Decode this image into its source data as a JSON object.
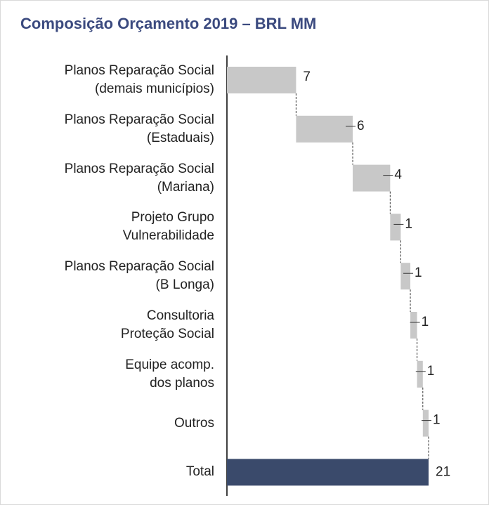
{
  "chart_data": {
    "type": "waterfall",
    "title": "Composição Orçamento 2019 – BRL MM",
    "categories": [
      "Planos Reparação Social\n(demais municípios)",
      "Planos Reparação Social\n(Estaduais)",
      "Planos Reparação Social\n(Mariana)",
      "Projeto Grupo\nVulnerabilidade",
      "Planos Reparação Social\n(B Longa)",
      "Consultoria\nProteção Social",
      "Equipe acomp.\ndos planos",
      "Outros",
      "Total"
    ],
    "values": [
      7.2,
      5.9,
      3.9,
      1.1,
      1.0,
      0.7,
      0.6,
      0.6,
      21
    ],
    "value_labels": [
      "7",
      "6",
      "4",
      "1",
      "1",
      "1",
      "1",
      "1",
      "21"
    ],
    "measure": [
      "relative",
      "relative",
      "relative",
      "relative",
      "relative",
      "relative",
      "relative",
      "relative",
      "total"
    ],
    "colors": [
      "#c8c8c8",
      "#c8c8c8",
      "#c8c8c8",
      "#c8c8c8",
      "#c8c8c8",
      "#c8c8c8",
      "#c8c8c8",
      "#c8c8c8",
      "#3a4a6b"
    ],
    "xlim": [
      0,
      21
    ]
  }
}
